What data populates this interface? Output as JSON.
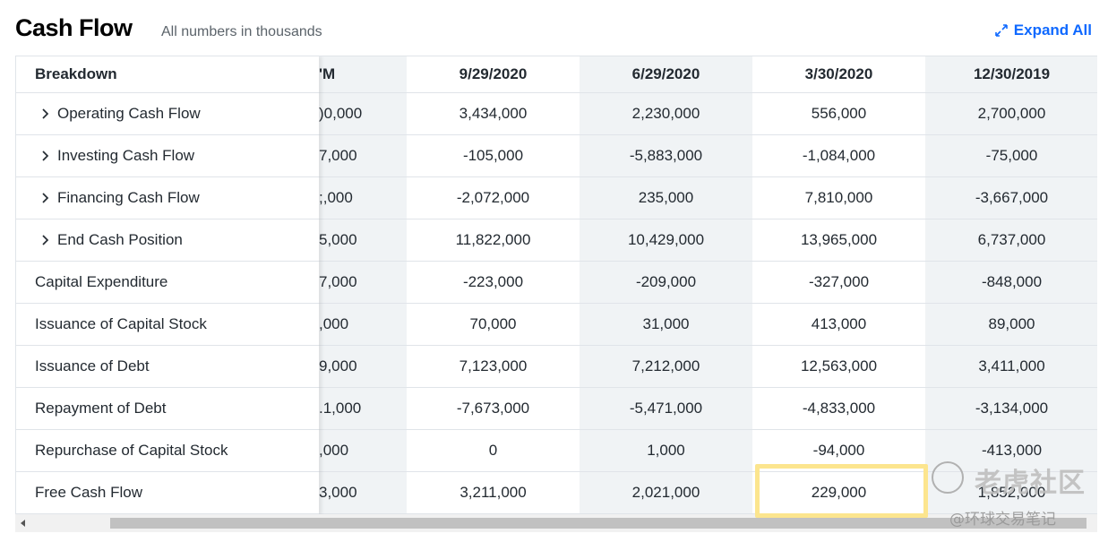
{
  "header": {
    "title": "Cash Flow",
    "subtitle": "All numbers in thousands",
    "expand_all_label": "Expand All"
  },
  "table": {
    "breakdown_header": "Breakdown",
    "columns": [
      "'M",
      "9/29/2020",
      "6/29/2020",
      "3/30/2020",
      "12/30/2019"
    ],
    "rows": [
      {
        "label": "Operating Cash Flow",
        "expandable": true,
        "values": [
          ")0,000",
          "3,434,000",
          "2,230,000",
          "556,000",
          "2,700,000"
        ]
      },
      {
        "label": "Investing Cash Flow",
        "expandable": true,
        "values": [
          "7,000",
          "-105,000",
          "-5,883,000",
          "-1,084,000",
          "-75,000"
        ]
      },
      {
        "label": "Financing Cash Flow",
        "expandable": true,
        "values": [
          ";,000",
          "-2,072,000",
          "235,000",
          "7,810,000",
          "-3,667,000"
        ]
      },
      {
        "label": "End Cash Position",
        "expandable": true,
        "values": [
          "5,000",
          "11,822,000",
          "10,429,000",
          "13,965,000",
          "6,737,000"
        ]
      },
      {
        "label": "Capital Expenditure",
        "expandable": false,
        "values": [
          "7,000",
          "-223,000",
          "-209,000",
          "-327,000",
          "-848,000"
        ]
      },
      {
        "label": "Issuance of Capital Stock",
        "expandable": false,
        "values": [
          ",000",
          "70,000",
          "31,000",
          "413,000",
          "89,000"
        ]
      },
      {
        "label": "Issuance of Debt",
        "expandable": false,
        "values": [
          "9,000",
          "7,123,000",
          "7,212,000",
          "12,563,000",
          "3,411,000"
        ]
      },
      {
        "label": "Repayment of Debt",
        "expandable": false,
        "values": [
          ".1,000",
          "-7,673,000",
          "-5,471,000",
          "-4,833,000",
          "-3,134,000"
        ]
      },
      {
        "label": "Repurchase of Capital Stock",
        "expandable": false,
        "values": [
          ",000",
          "0",
          "1,000",
          "-94,000",
          "-413,000"
        ]
      },
      {
        "label": "Free Cash Flow",
        "expandable": false,
        "values": [
          "3,000",
          "3,211,000",
          "2,021,000",
          "229,000",
          "1,852,000"
        ]
      }
    ]
  },
  "watermark": {
    "brand": "老虎社区",
    "handle": "@环球交易笔记"
  },
  "colors": {
    "accent": "#0f69ff",
    "highlight": "#fce58e",
    "shaded_column": "#f0f3f5"
  }
}
